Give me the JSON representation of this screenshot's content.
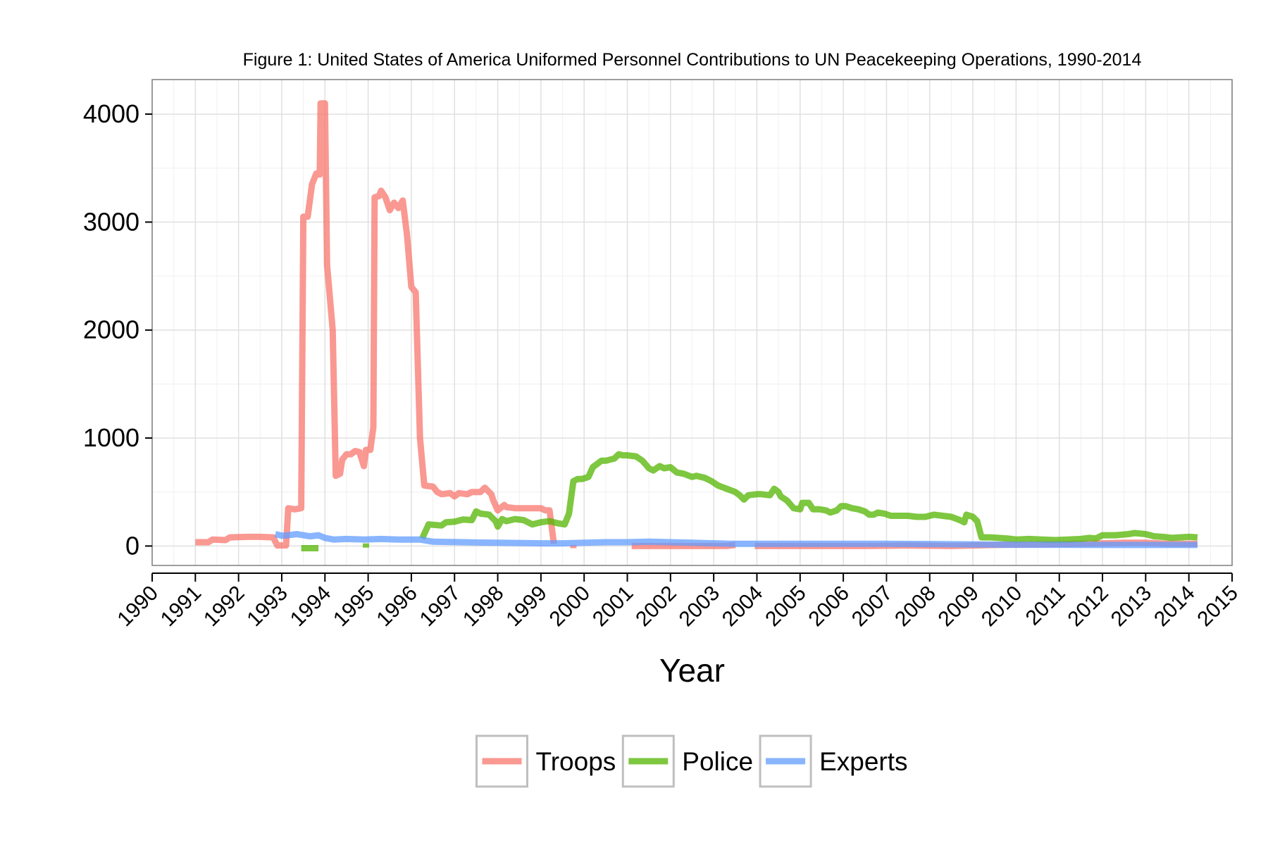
{
  "chart_data": {
    "type": "line",
    "title": "Figure 1: United States of America Uniformed Personnel Contributions to UN Peacekeeping Operations, 1990-2014",
    "xlabel": "Year",
    "ylabel": "",
    "xlim": [
      1990,
      2015
    ],
    "ylim": [
      -180,
      4320
    ],
    "x_ticks": [
      "1990",
      "1991",
      "1992",
      "1993",
      "1994",
      "1995",
      "1996",
      "1997",
      "1998",
      "1999",
      "2000",
      "2001",
      "2002",
      "2003",
      "2004",
      "2005",
      "2006",
      "2007",
      "2008",
      "2009",
      "2010",
      "2011",
      "2012",
      "2013",
      "2014",
      "2015"
    ],
    "y_ticks": [
      "0",
      "1000",
      "2000",
      "3000",
      "4000"
    ],
    "grid": true,
    "legend_position": "bottom",
    "series": [
      {
        "name": "Troops",
        "color": "#F8766D",
        "segments": [
          [
            [
              1991.0,
              35
            ],
            [
              1991.3,
              35
            ],
            [
              1991.4,
              60
            ],
            [
              1991.7,
              55
            ],
            [
              1991.8,
              80
            ],
            [
              1992.2,
              85
            ],
            [
              1992.5,
              85
            ],
            [
              1992.8,
              80
            ],
            [
              1992.9,
              5
            ],
            [
              1993.1,
              5
            ],
            [
              1993.15,
              350
            ],
            [
              1993.3,
              340
            ],
            [
              1993.45,
              350
            ],
            [
              1993.5,
              3050
            ],
            [
              1993.6,
              3050
            ],
            [
              1993.7,
              3350
            ],
            [
              1993.8,
              3450
            ],
            [
              1993.88,
              3440
            ],
            [
              1993.9,
              4100
            ],
            [
              1994.0,
              4100
            ],
            [
              1994.05,
              2600
            ],
            [
              1994.18,
              2000
            ],
            [
              1994.25,
              650
            ],
            [
              1994.35,
              670
            ],
            [
              1994.4,
              800
            ],
            [
              1994.5,
              850
            ],
            [
              1994.6,
              850
            ],
            [
              1994.7,
              880
            ],
            [
              1994.8,
              870
            ],
            [
              1994.9,
              740
            ],
            [
              1994.95,
              890
            ],
            [
              1995.05,
              890
            ],
            [
              1995.12,
              1100
            ],
            [
              1995.15,
              3230
            ],
            [
              1995.25,
              3240
            ],
            [
              1995.3,
              3290
            ],
            [
              1995.4,
              3230
            ],
            [
              1995.5,
              3110
            ],
            [
              1995.6,
              3180
            ],
            [
              1995.7,
              3130
            ],
            [
              1995.8,
              3200
            ],
            [
              1995.9,
              2880
            ],
            [
              1996.0,
              2400
            ],
            [
              1996.1,
              2350
            ],
            [
              1996.2,
              1000
            ],
            [
              1996.3,
              560
            ],
            [
              1996.5,
              550
            ],
            [
              1996.6,
              500
            ],
            [
              1996.7,
              480
            ],
            [
              1996.9,
              490
            ],
            [
              1997.0,
              460
            ],
            [
              1997.1,
              490
            ],
            [
              1997.3,
              480
            ],
            [
              1997.4,
              500
            ],
            [
              1997.6,
              500
            ],
            [
              1997.7,
              540
            ],
            [
              1997.85,
              480
            ],
            [
              1997.9,
              420
            ],
            [
              1998.0,
              330
            ],
            [
              1998.15,
              380
            ],
            [
              1998.2,
              360
            ],
            [
              1998.4,
              350
            ],
            [
              1998.6,
              350
            ],
            [
              1999.0,
              350
            ],
            [
              1999.1,
              330
            ],
            [
              1999.2,
              330
            ],
            [
              1999.3,
              20
            ]
          ],
          [
            [
              1999.75,
              10
            ],
            [
              1999.75,
              -20
            ]
          ],
          [
            [
              2001.1,
              0
            ],
            [
              2002.0,
              0
            ],
            [
              2003.3,
              0
            ],
            [
              2003.5,
              10
            ]
          ],
          [
            [
              2003.95,
              0
            ],
            [
              2004.5,
              0
            ],
            [
              2005.5,
              0
            ],
            [
              2006.5,
              0
            ],
            [
              2007.5,
              5
            ],
            [
              2008.5,
              0
            ],
            [
              2009.5,
              10
            ],
            [
              2010.5,
              15
            ],
            [
              2011.5,
              20
            ],
            [
              2012.0,
              25
            ],
            [
              2012.5,
              30
            ],
            [
              2013.0,
              30
            ],
            [
              2013.5,
              20
            ],
            [
              2014.0,
              20
            ],
            [
              2014.2,
              20
            ]
          ]
        ]
      },
      {
        "name": "Police",
        "color": "#53B400",
        "segments": [
          [
            [
              1993.45,
              -20
            ],
            [
              1993.85,
              -20
            ]
          ],
          [
            [
              1994.95,
              -15
            ],
            [
              1994.95,
              25
            ]
          ],
          [
            [
              1996.25,
              70
            ],
            [
              1996.4,
              200
            ],
            [
              1996.7,
              190
            ],
            [
              1996.8,
              220
            ],
            [
              1997.0,
              225
            ],
            [
              1997.2,
              245
            ],
            [
              1997.4,
              240
            ],
            [
              1997.5,
              320
            ],
            [
              1997.6,
              300
            ],
            [
              1997.8,
              290
            ],
            [
              1997.95,
              230
            ],
            [
              1998.0,
              180
            ],
            [
              1998.1,
              250
            ],
            [
              1998.2,
              230
            ],
            [
              1998.4,
              250
            ],
            [
              1998.6,
              240
            ],
            [
              1998.8,
              200
            ],
            [
              1999.0,
              220
            ],
            [
              1999.2,
              230
            ],
            [
              1999.4,
              210
            ],
            [
              1999.55,
              200
            ],
            [
              1999.65,
              300
            ],
            [
              1999.75,
              600
            ],
            [
              1999.85,
              620
            ],
            [
              1999.95,
              620
            ],
            [
              2000.1,
              640
            ],
            [
              2000.2,
              730
            ],
            [
              2000.4,
              790
            ],
            [
              2000.5,
              790
            ],
            [
              2000.7,
              810
            ],
            [
              2000.8,
              850
            ],
            [
              2000.9,
              840
            ],
            [
              2001.0,
              840
            ],
            [
              2001.2,
              830
            ],
            [
              2001.35,
              790
            ],
            [
              2001.5,
              720
            ],
            [
              2001.6,
              700
            ],
            [
              2001.75,
              740
            ],
            [
              2001.85,
              720
            ],
            [
              2002.0,
              730
            ],
            [
              2002.15,
              680
            ],
            [
              2002.3,
              670
            ],
            [
              2002.5,
              640
            ],
            [
              2002.6,
              650
            ],
            [
              2002.8,
              630
            ],
            [
              2002.95,
              600
            ],
            [
              2003.1,
              560
            ],
            [
              2003.3,
              530
            ],
            [
              2003.5,
              500
            ],
            [
              2003.6,
              470
            ],
            [
              2003.7,
              430
            ],
            [
              2003.8,
              470
            ],
            [
              2004.0,
              480
            ],
            [
              2004.1,
              480
            ],
            [
              2004.3,
              470
            ],
            [
              2004.4,
              530
            ],
            [
              2004.5,
              500
            ],
            [
              2004.55,
              460
            ],
            [
              2004.7,
              420
            ],
            [
              2004.85,
              350
            ],
            [
              2005.0,
              340
            ],
            [
              2005.05,
              400
            ],
            [
              2005.2,
              400
            ],
            [
              2005.3,
              340
            ],
            [
              2005.45,
              340
            ],
            [
              2005.6,
              330
            ],
            [
              2005.7,
              310
            ],
            [
              2005.85,
              330
            ],
            [
              2005.95,
              370
            ],
            [
              2006.05,
              370
            ],
            [
              2006.2,
              350
            ],
            [
              2006.35,
              340
            ],
            [
              2006.5,
              320
            ],
            [
              2006.6,
              290
            ],
            [
              2006.7,
              290
            ],
            [
              2006.8,
              310
            ],
            [
              2006.95,
              300
            ],
            [
              2007.1,
              280
            ],
            [
              2007.3,
              280
            ],
            [
              2007.5,
              280
            ],
            [
              2007.7,
              270
            ],
            [
              2007.9,
              270
            ],
            [
              2008.1,
              290
            ],
            [
              2008.3,
              280
            ],
            [
              2008.5,
              270
            ],
            [
              2008.7,
              240
            ],
            [
              2008.8,
              220
            ],
            [
              2008.85,
              290
            ],
            [
              2009.0,
              270
            ],
            [
              2009.1,
              230
            ],
            [
              2009.2,
              80
            ],
            [
              2009.4,
              80
            ],
            [
              2009.6,
              75
            ],
            [
              2009.8,
              70
            ],
            [
              2010.0,
              60
            ],
            [
              2010.3,
              65
            ],
            [
              2010.6,
              60
            ],
            [
              2010.9,
              55
            ],
            [
              2011.2,
              60
            ],
            [
              2011.5,
              65
            ],
            [
              2011.7,
              75
            ],
            [
              2011.85,
              70
            ],
            [
              2012.0,
              100
            ],
            [
              2012.3,
              100
            ],
            [
              2012.6,
              110
            ],
            [
              2012.75,
              120
            ],
            [
              2013.0,
              110
            ],
            [
              2013.2,
              90
            ],
            [
              2013.4,
              85
            ],
            [
              2013.6,
              75
            ],
            [
              2013.8,
              80
            ],
            [
              2014.0,
              85
            ],
            [
              2014.2,
              80
            ]
          ]
        ]
      },
      {
        "name": "Experts",
        "color": "#619CFF",
        "segments": [
          [
            [
              1992.85,
              110
            ],
            [
              1993.0,
              95
            ],
            [
              1993.15,
              100
            ],
            [
              1993.35,
              110
            ],
            [
              1993.5,
              100
            ],
            [
              1993.65,
              90
            ],
            [
              1993.85,
              100
            ],
            [
              1994.0,
              75
            ],
            [
              1994.2,
              60
            ],
            [
              1994.5,
              65
            ],
            [
              1994.9,
              60
            ],
            [
              1995.3,
              65
            ],
            [
              1995.7,
              60
            ],
            [
              1996.2,
              60
            ],
            [
              1996.5,
              40
            ],
            [
              1996.8,
              38
            ],
            [
              1997.2,
              35
            ],
            [
              1997.6,
              32
            ],
            [
              1998.0,
              30
            ],
            [
              1998.5,
              28
            ],
            [
              1999.0,
              25
            ],
            [
              1999.5,
              25
            ],
            [
              2000.0,
              30
            ],
            [
              2000.5,
              35
            ],
            [
              2001.0,
              35
            ],
            [
              2001.5,
              40
            ],
            [
              2002.0,
              35
            ],
            [
              2002.5,
              30
            ],
            [
              2003.0,
              25
            ],
            [
              2003.4,
              20
            ],
            [
              2003.7,
              20
            ],
            [
              2004.0,
              20
            ],
            [
              2004.5,
              20
            ],
            [
              2005.0,
              20
            ],
            [
              2006.0,
              20
            ],
            [
              2007.0,
              20
            ],
            [
              2008.0,
              18
            ],
            [
              2009.0,
              15
            ],
            [
              2010.0,
              12
            ],
            [
              2011.0,
              12
            ],
            [
              2012.0,
              10
            ],
            [
              2013.0,
              10
            ],
            [
              2014.0,
              10
            ],
            [
              2014.2,
              10
            ]
          ]
        ]
      }
    ]
  }
}
